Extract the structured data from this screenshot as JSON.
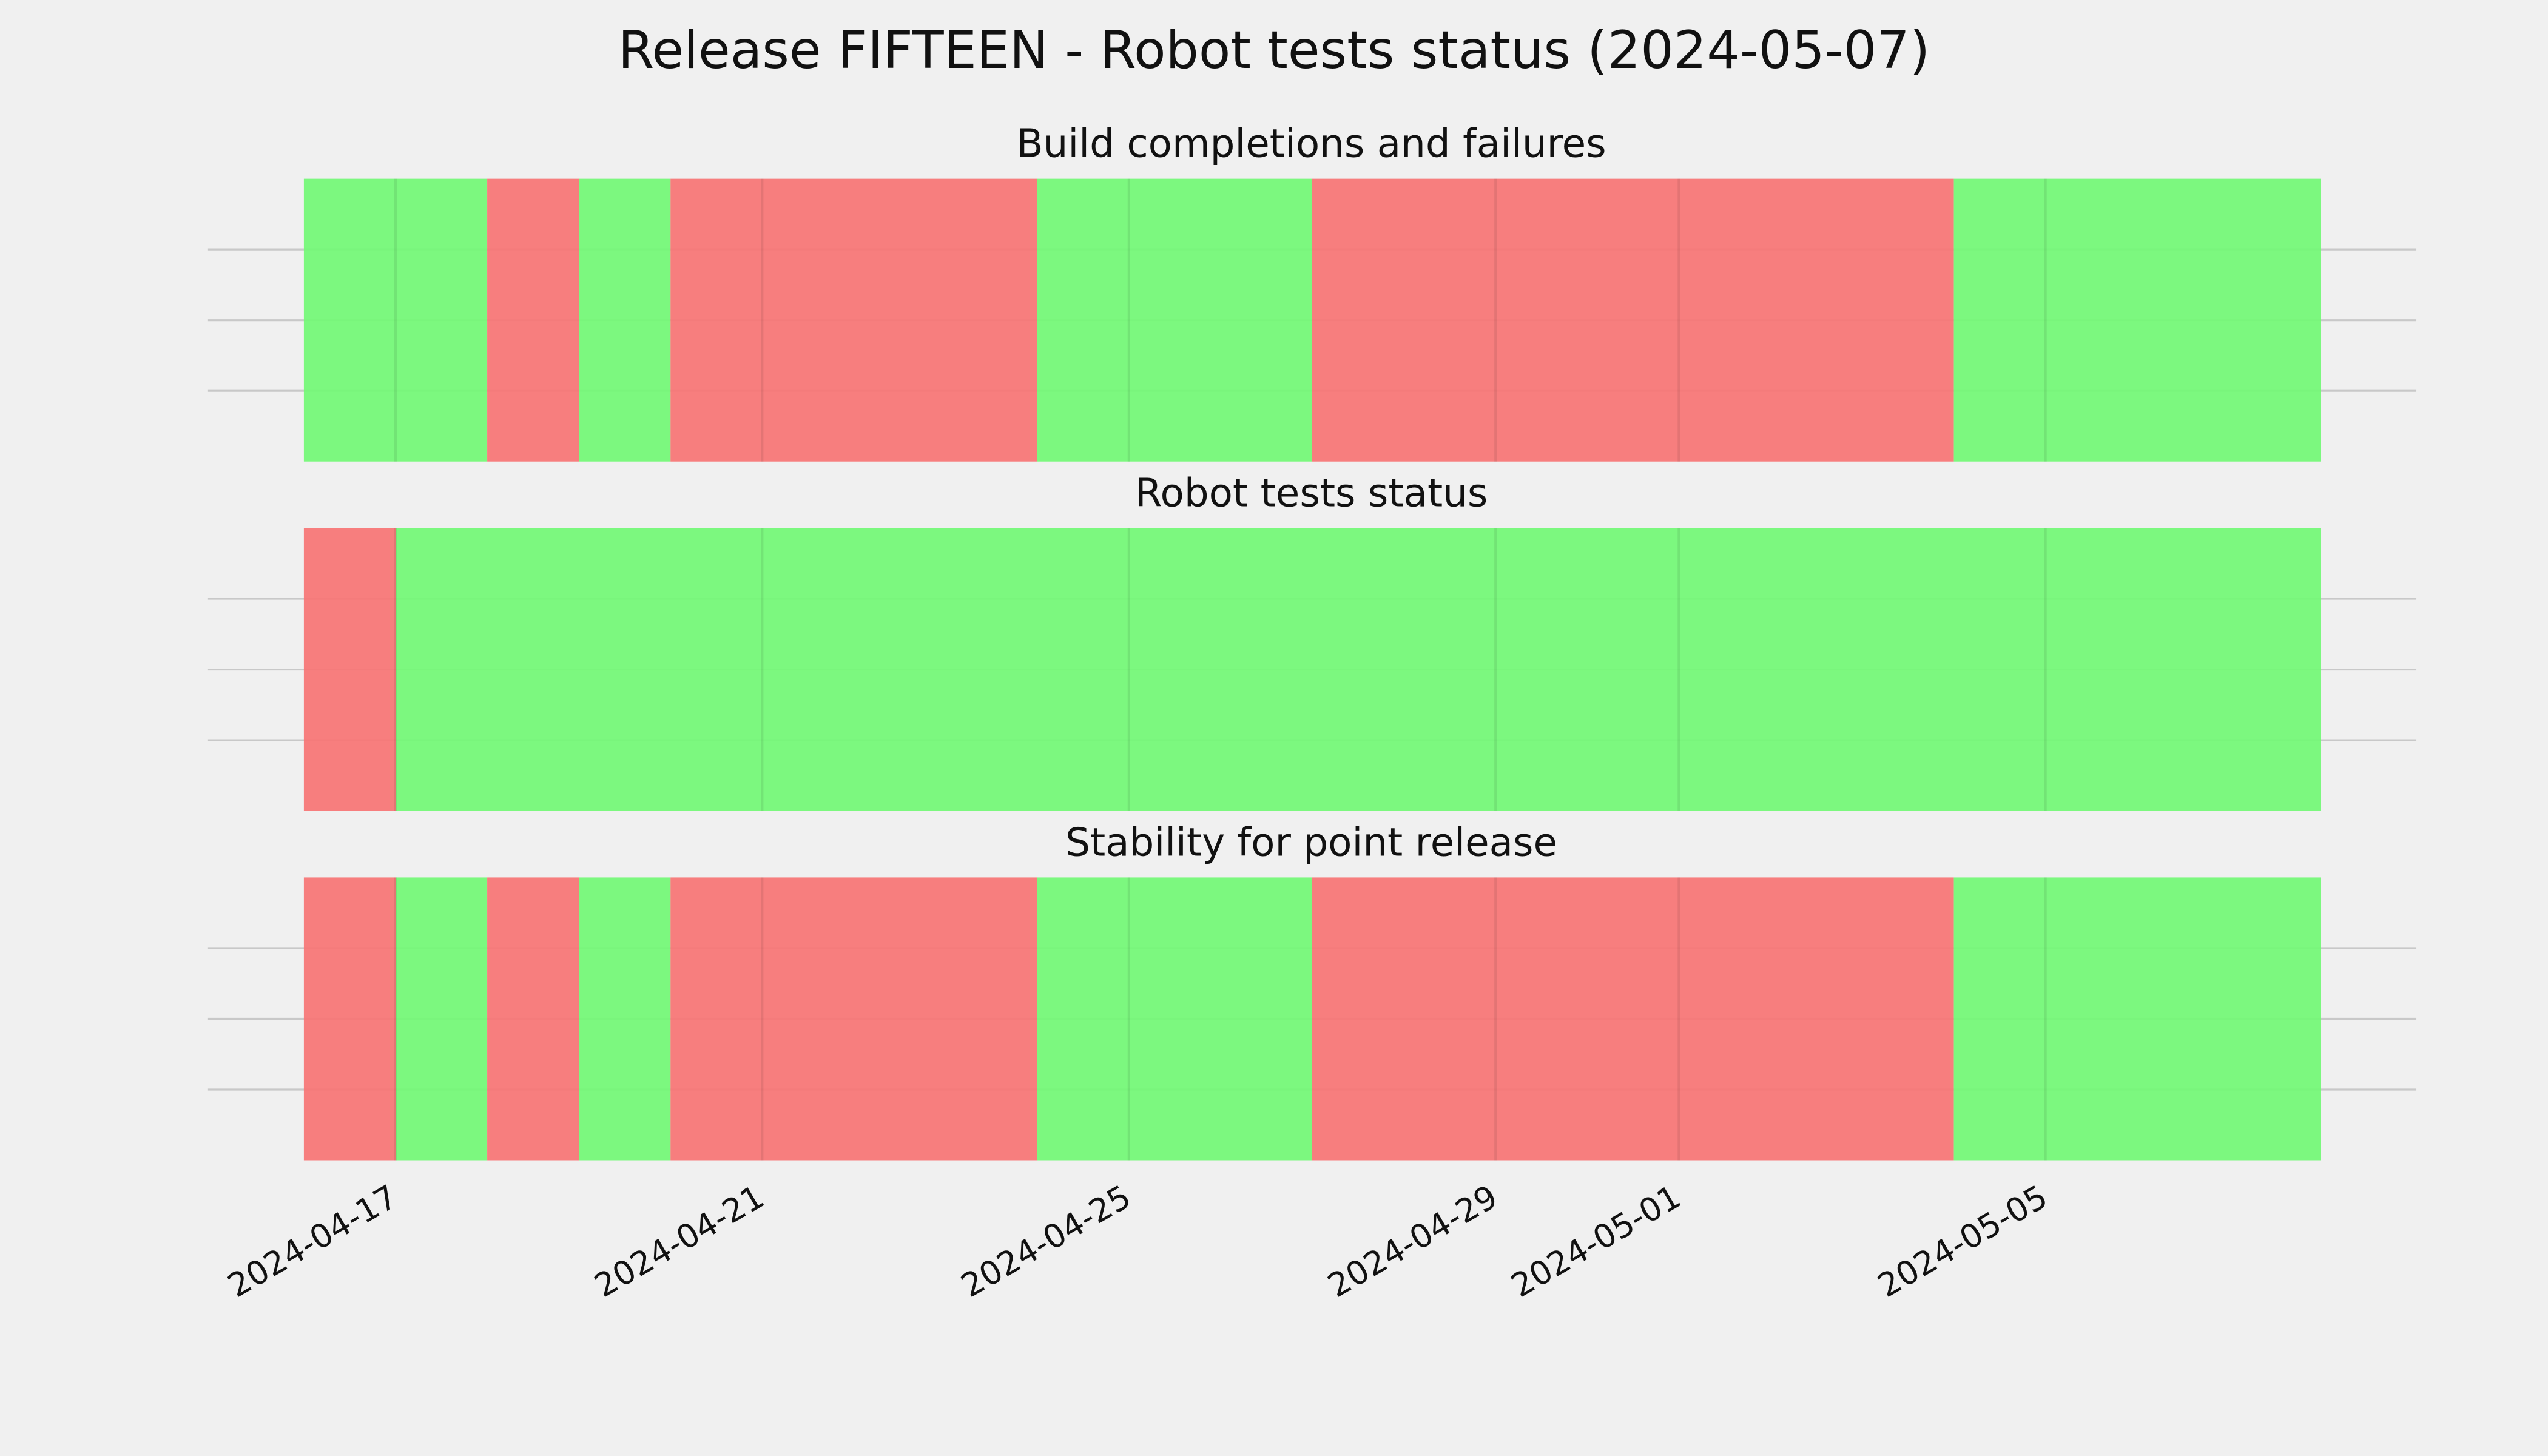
{
  "title": "Release FIFTEEN - Robot tests status (2024-05-07)",
  "chart_data": [
    {
      "type": "timeline",
      "title": "Build completions and failures",
      "segments": [
        {
          "start": "2024-04-16",
          "end": "2024-04-18",
          "color": "#75f878"
        },
        {
          "start": "2024-04-18",
          "end": "2024-04-19",
          "color": "#f77777"
        },
        {
          "start": "2024-04-19",
          "end": "2024-04-20",
          "color": "#75f878"
        },
        {
          "start": "2024-04-20",
          "end": "2024-04-24",
          "color": "#f77777"
        },
        {
          "start": "2024-04-24",
          "end": "2024-04-27",
          "color": "#75f878"
        },
        {
          "start": "2024-04-27",
          "end": "2024-05-04",
          "color": "#f77777"
        },
        {
          "start": "2024-05-04",
          "end": "2024-05-08",
          "color": "#75f878"
        }
      ]
    },
    {
      "type": "timeline",
      "title": "Robot tests status",
      "segments": [
        {
          "start": "2024-04-16",
          "end": "2024-04-17",
          "color": "#f77777"
        },
        {
          "start": "2024-04-17",
          "end": "2024-05-08",
          "color": "#75f878"
        }
      ]
    },
    {
      "type": "timeline",
      "title": "Stability for point release",
      "segments": [
        {
          "start": "2024-04-16",
          "end": "2024-04-17",
          "color": "#f77777"
        },
        {
          "start": "2024-04-17",
          "end": "2024-04-18",
          "color": "#75f878"
        },
        {
          "start": "2024-04-18",
          "end": "2024-04-19",
          "color": "#f77777"
        },
        {
          "start": "2024-04-19",
          "end": "2024-04-20",
          "color": "#75f878"
        },
        {
          "start": "2024-04-20",
          "end": "2024-04-24",
          "color": "#f77777"
        },
        {
          "start": "2024-04-24",
          "end": "2024-04-27",
          "color": "#75f878"
        },
        {
          "start": "2024-04-27",
          "end": "2024-05-04",
          "color": "#f77777"
        },
        {
          "start": "2024-05-04",
          "end": "2024-05-08",
          "color": "#75f878"
        }
      ],
      "xticks": [
        "2024-04-17",
        "2024-04-21",
        "2024-04-25",
        "2024-04-29",
        "2024-05-01",
        "2024-05-05"
      ]
    }
  ]
}
